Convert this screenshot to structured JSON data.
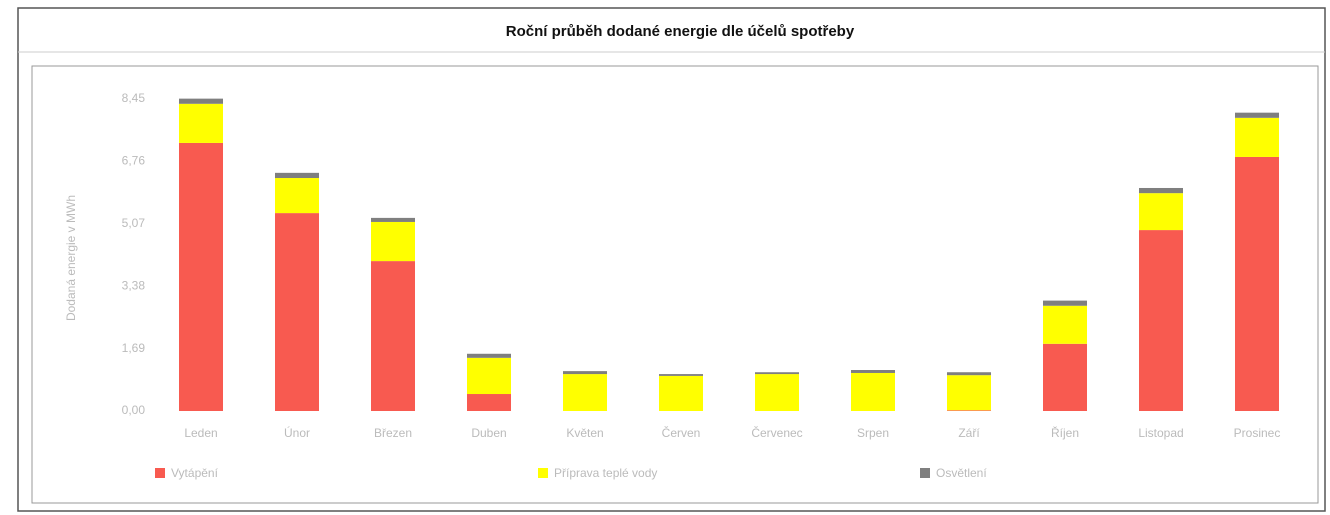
{
  "chart_data": {
    "type": "stacked_bar",
    "title": "Roční průběh dodané energie dle účelů spotřeby",
    "y_label": "Dodaná energie v MWh",
    "categories": [
      "Leden",
      "Únor",
      "Březen",
      "Duben",
      "Květen",
      "Červen",
      "Červenec",
      "Srpen",
      "Září",
      "Říjen",
      "Listopad",
      "Prosinec"
    ],
    "series": [
      {
        "name": "Vytápění",
        "color": "#f85a50",
        "values": [
          7.26,
          5.36,
          4.06,
          0.46,
          0,
          0,
          0,
          0,
          0.02,
          1.82,
          4.9,
          6.88
        ]
      },
      {
        "name": "Příprava teplé vody",
        "color": "#ffff00",
        "values": [
          1.06,
          0.95,
          1.06,
          0.98,
          1.0,
          0.95,
          1.0,
          1.03,
          0.95,
          1.03,
          1.0,
          1.06
        ]
      },
      {
        "name": "Osvětlení",
        "color": "#7f7f7f",
        "values": [
          0.14,
          0.14,
          0.11,
          0.11,
          0.08,
          0.05,
          0.05,
          0.08,
          0.08,
          0.14,
          0.14,
          0.14
        ]
      }
    ],
    "ylim": [
      0,
      8.45
    ],
    "yticks": [
      {
        "value": 0,
        "label": "0,00"
      },
      {
        "value": 1.69,
        "label": "1,69"
      },
      {
        "value": 3.38,
        "label": "3,38"
      },
      {
        "value": 5.07,
        "label": "5,07"
      },
      {
        "value": 6.76,
        "label": "6,76"
      },
      {
        "value": 8.45,
        "label": "8,45"
      }
    ],
    "grid": false,
    "legend": "bottom"
  }
}
